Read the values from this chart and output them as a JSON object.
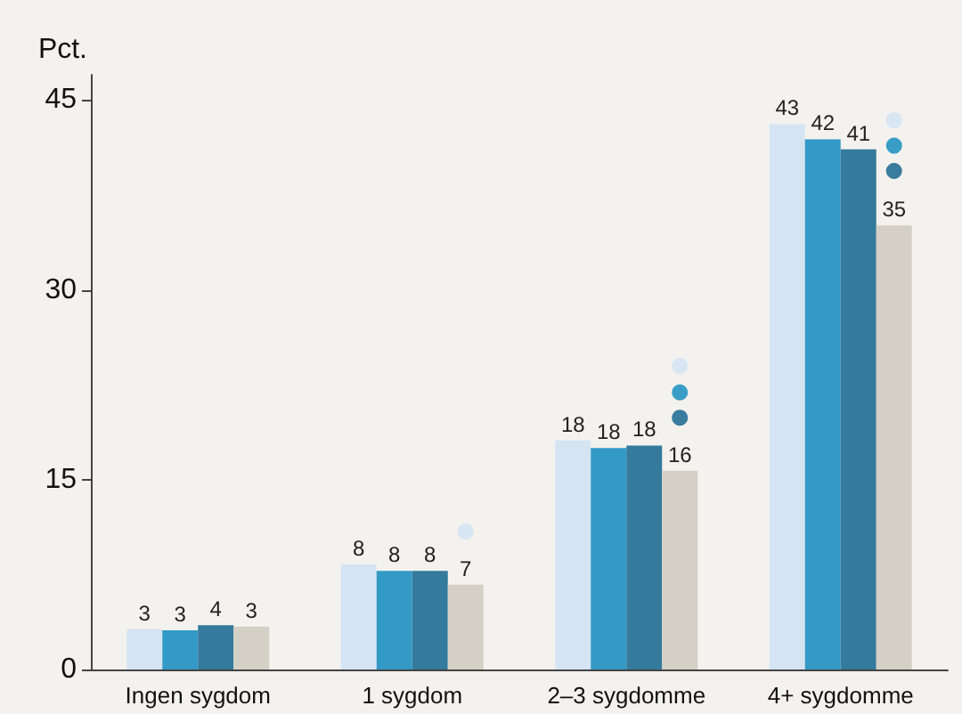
{
  "chart_data": {
    "type": "bar",
    "ylabel": "Pct.",
    "categories": [
      "Ingen sygdom",
      "1 sygdom",
      "2–3 sygdomme",
      "4+ sygdomme"
    ],
    "ylim": [
      0,
      47
    ],
    "yticks": [
      0,
      15,
      30,
      45
    ],
    "grid": false,
    "series": [
      {
        "color": "#d5e4f3",
        "values": [
          3.2,
          8.3,
          18.1,
          43.1
        ],
        "value_labels": [
          "3",
          "8",
          "18",
          "43"
        ]
      },
      {
        "color": "#3399c6",
        "values": [
          3.1,
          7.8,
          17.5,
          41.9
        ],
        "value_labels": [
          "3",
          "8",
          "18",
          "42"
        ]
      },
      {
        "color": "#337a9c",
        "values": [
          3.5,
          7.8,
          17.7,
          41.1
        ],
        "value_labels": [
          "4",
          "8",
          "18",
          "41"
        ]
      },
      {
        "color": "#d4d0c6",
        "values": [
          3.4,
          6.7,
          15.7,
          35.1
        ],
        "value_labels": [
          "3",
          "7",
          "16",
          "35"
        ]
      },
      {
        "type": "scatter",
        "marker": "circle",
        "color": "#cfe2f3",
        "x": [
          "1 sygdom",
          "2–3 sygdomme",
          "4+ sygdomme"
        ],
        "values": [
          10.9,
          24.0,
          43.4
        ]
      },
      {
        "type": "scatter",
        "marker": "circle",
        "color": "#0a88ba",
        "x": [
          "2–3 sygdomme",
          "4+ sygdomme"
        ],
        "values": [
          21.9,
          41.4
        ]
      },
      {
        "type": "scatter",
        "marker": "circle",
        "color": "#0a5e8a",
        "x": [
          "2–3 sygdomme",
          "4+ sygdomme"
        ],
        "values": [
          19.9,
          39.4
        ]
      }
    ]
  }
}
